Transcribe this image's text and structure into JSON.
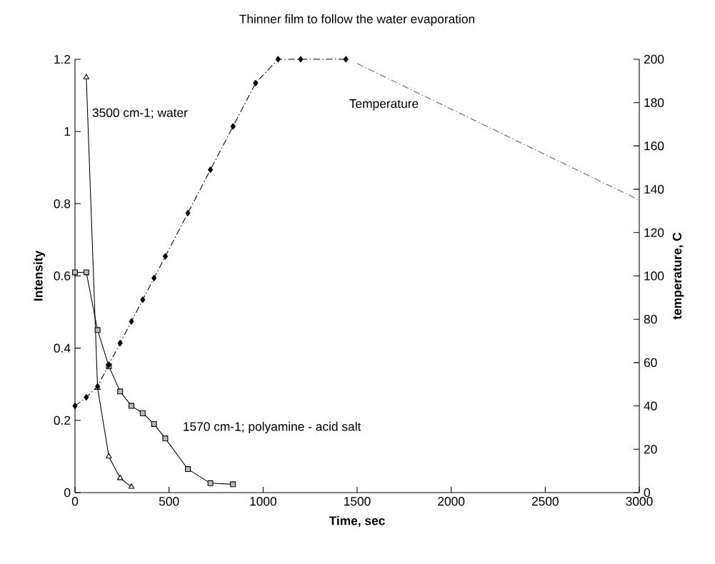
{
  "chart_data": {
    "type": "line",
    "title": "Thinner film to follow the water evaporation",
    "xlabel": "Time, sec",
    "ylabel": "Intensity",
    "y2label": "temperature, C",
    "xlim": [
      0,
      3000
    ],
    "xticks": [
      0,
      500,
      1000,
      1500,
      2000,
      2500,
      3000
    ],
    "ylim": [
      0,
      1.2
    ],
    "yticks": [
      0,
      0.2,
      0.4,
      0.6,
      0.8,
      1,
      1.2
    ],
    "y2lim": [
      0,
      200
    ],
    "y2ticks": [
      0,
      20,
      40,
      60,
      80,
      100,
      120,
      140,
      160,
      180,
      200
    ],
    "legend": false,
    "series": [
      {
        "name": "3500 cm-1; water",
        "color": "#000000",
        "marker": "triangle",
        "line_style": "solid",
        "x": [
          60,
          120,
          180,
          240,
          300
        ],
        "values": [
          1.15,
          0.29,
          0.1,
          0.04,
          0.016
        ]
      },
      {
        "name": "1570 cm-1; polyamine - acid salt",
        "color": "#000000",
        "marker": "square",
        "line_style": "solid",
        "x": [
          0,
          60,
          120,
          180,
          240,
          300,
          360,
          420,
          480,
          600,
          720,
          840
        ],
        "values": [
          0.61,
          0.61,
          0.45,
          0.35,
          0.28,
          0.24,
          0.22,
          0.19,
          0.15,
          0.065,
          0.026,
          0.023
        ]
      },
      {
        "color": "#000000",
        "marker": "diamond",
        "line_style": "dashed",
        "axis": "y2",
        "x": [
          0,
          60,
          120,
          180,
          240,
          300,
          360,
          420,
          480,
          600,
          720,
          840,
          960,
          1080,
          1200,
          1440
        ],
        "values": [
          40,
          44,
          49,
          59,
          69,
          79,
          89,
          99,
          109,
          129,
          149,
          169,
          189,
          200,
          200,
          200
        ]
      },
      {
        "name": "Temperature",
        "color": "#666666",
        "marker": "none",
        "line_style": "dashed",
        "axis": "y2",
        "x": [
          1500,
          3000
        ],
        "values": [
          198,
          135
        ]
      }
    ]
  }
}
